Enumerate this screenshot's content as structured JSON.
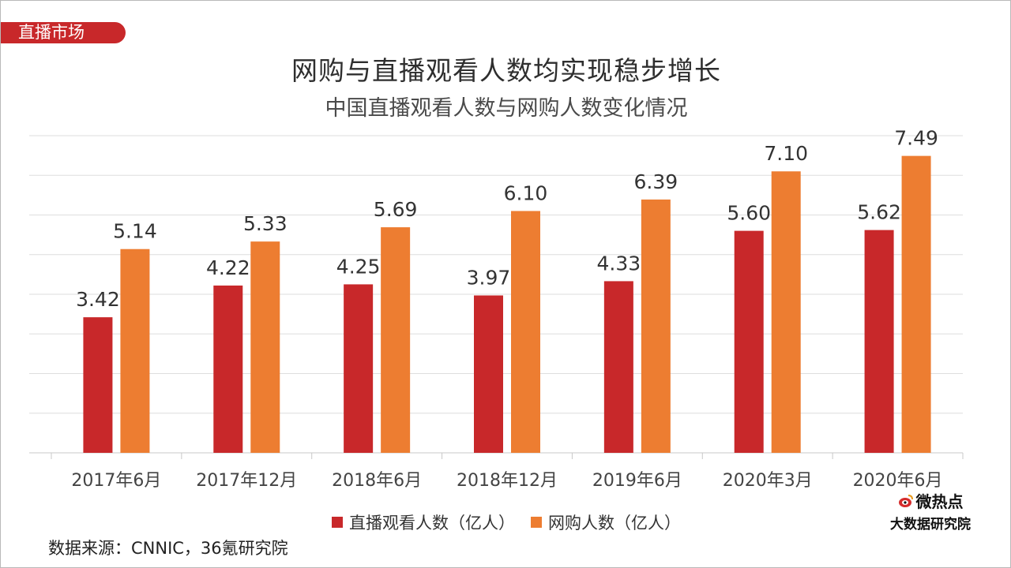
{
  "section_tag": "直播市场",
  "source": "数据来源：CNNIC，36氪研究院",
  "logo": {
    "top_text": "微热点",
    "bottom_text": "大数据研究院",
    "icon": "weibo-eye-icon"
  },
  "colors": {
    "live": "#c8282a",
    "shopping": "#ed7d31",
    "tag": "#c8282a"
  },
  "chart_data": {
    "type": "bar",
    "title": "网购与直播观看人数均实现稳步增长",
    "subtitle": "中国直播观看人数与网购人数变化情况",
    "xlabel": "",
    "ylabel": "",
    "categories": [
      "2017年6月",
      "2017年12月",
      "2018年6月",
      "2018年12月",
      "2019年6月",
      "2020年3月",
      "2020年6月"
    ],
    "series": [
      {
        "name": "直播观看人数（亿人）",
        "values": [
          3.42,
          4.22,
          4.25,
          3.97,
          4.33,
          5.6,
          5.62
        ],
        "color": "#c8282a"
      },
      {
        "name": "网购人数（亿人）",
        "values": [
          5.14,
          5.33,
          5.69,
          6.1,
          6.39,
          7.1,
          7.49
        ],
        "color": "#ed7d31"
      }
    ],
    "ylim": [
      0,
      8
    ],
    "grid": true,
    "legend": "bottom",
    "data_labels": true
  }
}
